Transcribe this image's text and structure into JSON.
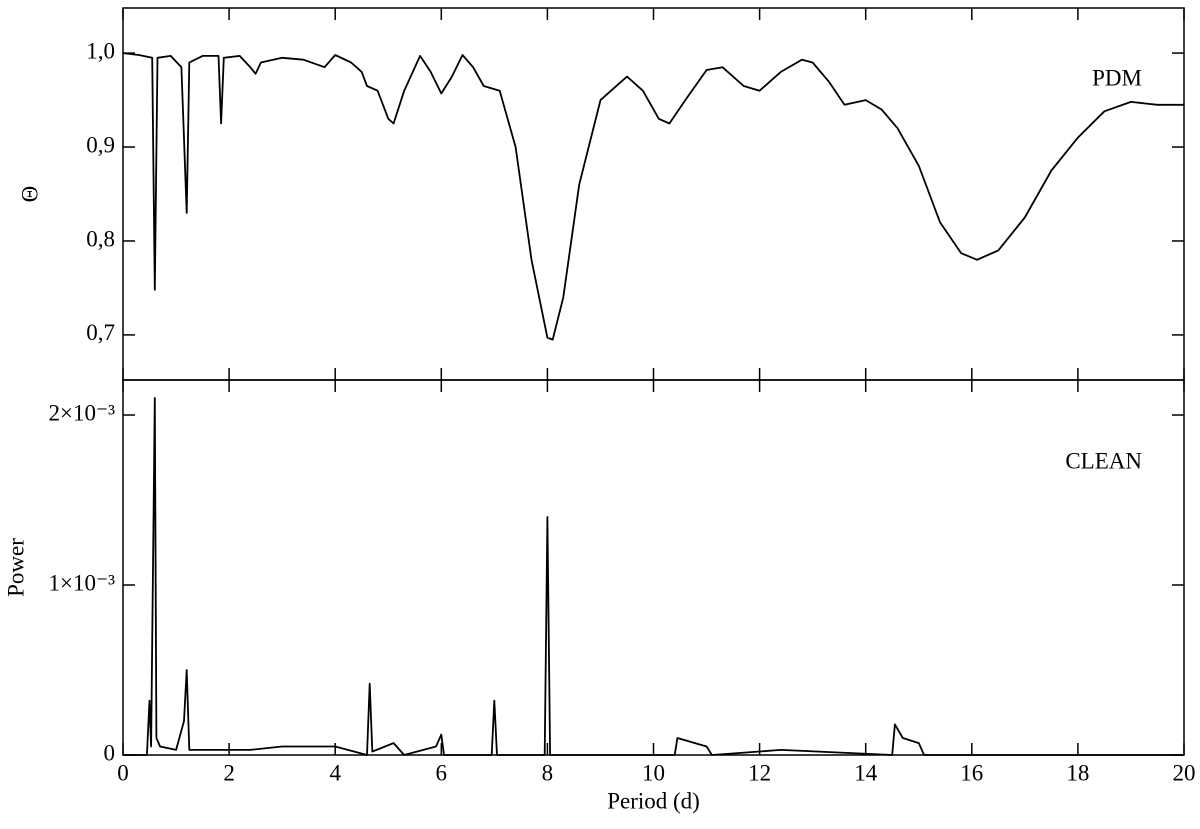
{
  "chart_data": [
    {
      "type": "line",
      "ylabel": "Θ",
      "annotation": "PDM",
      "color": "#000000",
      "x": [
        0,
        0.3,
        0.55,
        0.6,
        0.65,
        0.9,
        1.1,
        1.2,
        1.25,
        1.5,
        1.8,
        1.85,
        1.9,
        2.2,
        2.4,
        2.5,
        2.6,
        3.0,
        3.4,
        3.8,
        4.0,
        4.3,
        4.5,
        4.6,
        4.8,
        5.0,
        5.1,
        5.3,
        5.6,
        5.8,
        6.0,
        6.2,
        6.4,
        6.6,
        6.8,
        7.1,
        7.4,
        7.7,
        8.0,
        8.1,
        8.3,
        8.6,
        9.0,
        9.5,
        9.8,
        10.1,
        10.3,
        10.6,
        11.0,
        11.3,
        11.7,
        12.0,
        12.4,
        12.8,
        13.0,
        13.3,
        13.6,
        14.0,
        14.3,
        14.6,
        15.0,
        15.4,
        15.8,
        16.1,
        16.5,
        17.0,
        17.5,
        18.0,
        18.5,
        19.0,
        19.5,
        20.0
      ],
      "values": [
        1.0,
        0.998,
        0.995,
        0.748,
        0.995,
        0.997,
        0.985,
        0.83,
        0.99,
        0.997,
        0.997,
        0.925,
        0.995,
        0.997,
        0.985,
        0.978,
        0.99,
        0.995,
        0.993,
        0.985,
        0.998,
        0.99,
        0.98,
        0.965,
        0.96,
        0.93,
        0.925,
        0.96,
        0.997,
        0.98,
        0.957,
        0.975,
        0.998,
        0.985,
        0.965,
        0.96,
        0.9,
        0.78,
        0.697,
        0.695,
        0.74,
        0.86,
        0.95,
        0.975,
        0.96,
        0.93,
        0.925,
        0.95,
        0.982,
        0.985,
        0.965,
        0.96,
        0.98,
        0.993,
        0.99,
        0.97,
        0.945,
        0.95,
        0.94,
        0.92,
        0.88,
        0.82,
        0.787,
        0.78,
        0.79,
        0.825,
        0.875,
        0.91,
        0.938,
        0.948,
        0.945,
        0.945
      ],
      "xlim": [
        0,
        20
      ],
      "xticks": [
        0,
        2,
        4,
        6,
        8,
        10,
        12,
        14,
        16,
        18,
        20
      ],
      "ylim": [
        0.652,
        1.048
      ],
      "yticks": [
        {
          "value": 0.7,
          "label": "0,7"
        },
        {
          "value": 0.8,
          "label": "0,8"
        },
        {
          "value": 0.9,
          "label": "0,9"
        },
        {
          "value": 1.0,
          "label": "1,0"
        }
      ]
    },
    {
      "type": "line",
      "ylabel": "Power",
      "xlabel": "Period (d)",
      "annotation": "CLEAN",
      "color": "#000000",
      "x": [
        0,
        0.45,
        0.5,
        0.53,
        0.6,
        0.63,
        0.7,
        1.0,
        1.15,
        1.2,
        1.25,
        1.9,
        2.4,
        3.0,
        4.0,
        4.6,
        4.65,
        4.7,
        5.1,
        5.3,
        5.9,
        6.0,
        6.05,
        6.95,
        7.0,
        7.05,
        7.95,
        8.0,
        8.05,
        10.4,
        10.45,
        11.0,
        11.1,
        12.4,
        14.5,
        14.55,
        14.7,
        15.0,
        15.1,
        20
      ],
      "values": [
        0,
        0,
        0.00032,
        5e-05,
        0.0021,
        0.0001,
        5e-05,
        3e-05,
        0.0002,
        0.0005,
        3e-05,
        3e-05,
        3e-05,
        5e-05,
        5e-05,
        0,
        0.00042,
        2e-05,
        7e-05,
        0,
        5e-05,
        0.00012,
        0,
        0,
        0.00032,
        0,
        0,
        0.0014,
        0,
        0,
        0.0001,
        5e-05,
        0,
        3e-05,
        0,
        0.00018,
        0.0001,
        7e-05,
        0,
        0
      ],
      "xlim": [
        0,
        20
      ],
      "xticks": [
        0,
        2,
        4,
        6,
        8,
        10,
        12,
        14,
        16,
        18,
        20
      ],
      "ylim": [
        0,
        0.002206
      ],
      "yticks": [
        0,
        {
          "value": 0.001,
          "label": "1×10⁻³"
        },
        {
          "value": 0.002,
          "label": "2×10⁻³"
        }
      ]
    }
  ]
}
